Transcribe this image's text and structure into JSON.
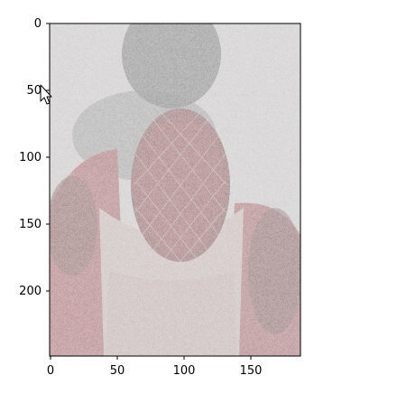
{
  "figure": {
    "type": "image-plot",
    "background": "#ffffff",
    "axes": {
      "x_ticks": [
        {
          "value": 0,
          "label": "0"
        },
        {
          "value": 50,
          "label": "50"
        },
        {
          "value": 100,
          "label": "100"
        },
        {
          "value": 150,
          "label": "150"
        }
      ],
      "y_ticks": [
        {
          "value": 0,
          "label": "0"
        },
        {
          "value": 50,
          "label": "50"
        },
        {
          "value": 100,
          "label": "100"
        },
        {
          "value": 150,
          "label": "150"
        },
        {
          "value": 200,
          "label": "200"
        }
      ],
      "xlim": [
        0,
        188
      ],
      "ylim": [
        248,
        0
      ]
    },
    "image": {
      "description_colors": {
        "pineapple_dark_red": "#6a0f12",
        "fruit_red": "#c0262a",
        "noise_black": "#111111",
        "noise_white": "#f6f2f2",
        "shirt_pink": "#e9c8c2"
      }
    }
  },
  "cursor": {
    "icon": "mouse-pointer-icon"
  }
}
